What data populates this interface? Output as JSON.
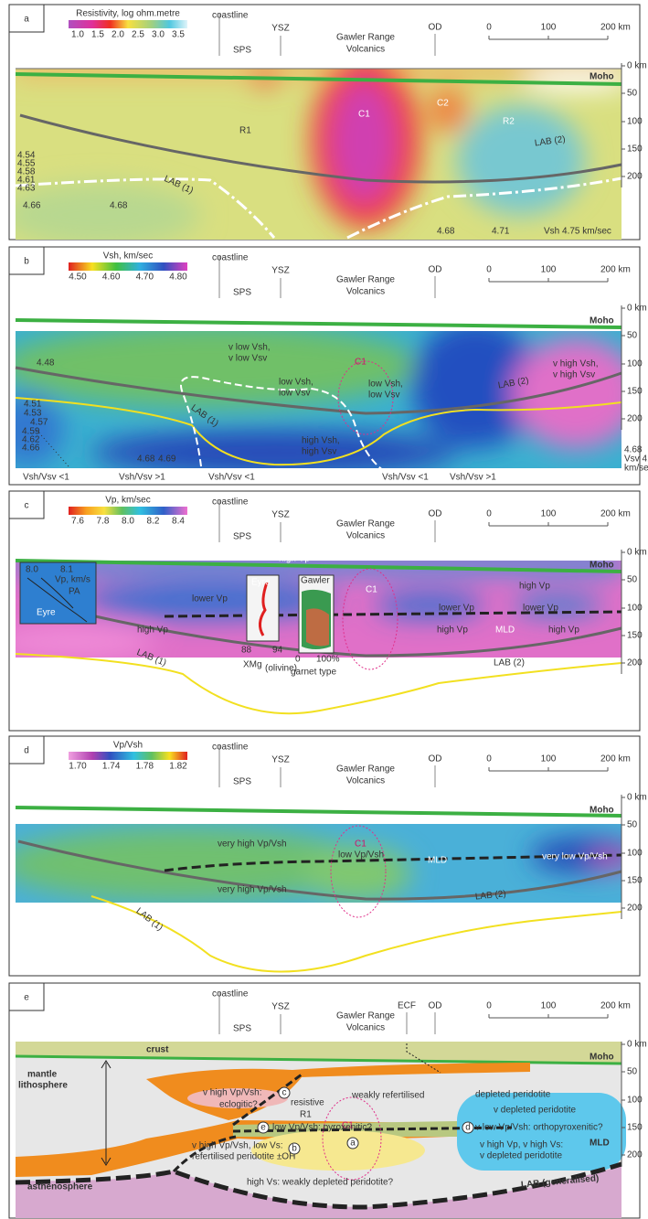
{
  "common": {
    "coastline": "coastline",
    "sps": "SPS",
    "ysz": "YSZ",
    "gawler_1": "Gawler Range",
    "gawler_2": "Volcanics",
    "od": "OD",
    "moho": "Moho",
    "scale": [
      "0",
      "100",
      "200 km"
    ],
    "depth": [
      "0 km",
      "50",
      "100",
      "150",
      "200"
    ]
  },
  "panels": [
    {
      "letter": "a",
      "colorbar_title": "Resistivity, log ohm.metre",
      "colorbar_ticks": [
        "1.0",
        "1.5",
        "2.0",
        "2.5",
        "3.0",
        "3.5"
      ],
      "labels": [
        "R1",
        "C1",
        "C2",
        "R2",
        "LAB (2)",
        "LAB (1)",
        "4.54",
        "4.55",
        "4.58",
        "4.61",
        "4.63",
        "4.66",
        "4.68",
        "4.68",
        "4.71",
        "Vsh 4.75 km/sec"
      ]
    },
    {
      "letter": "b",
      "colorbar_title": "Vsh, km/sec",
      "colorbar_ticks": [
        "4.50",
        "4.60",
        "4.70",
        "4.80"
      ],
      "labels": [
        "v low Vsh,",
        "v low Vsv",
        "4.48",
        "low Vsh,",
        "low Vsv",
        "low Vsh,",
        "low Vsv",
        "C1",
        "v high Vsh,",
        "v high Vsv",
        "LAB (1)",
        "LAB (2)",
        "4.51",
        "4.53",
        "4.57",
        "4.59",
        "4.62",
        "4.66",
        "4.68",
        "4.69",
        "high Vsh,",
        "high Vsv",
        "Vsh/Vsv <1",
        "Vsh/Vsv >1",
        "Vsh/Vsv <1",
        "Vsh/Vsv <1",
        "Vsh/Vsv >1",
        "4.68",
        "Vsv 4.6",
        "km/sec"
      ]
    },
    {
      "letter": "c",
      "colorbar_title": "Vp, km/sec",
      "colorbar_ticks": [
        "7.6",
        "7.8",
        "8.0",
        "8.2",
        "8.4"
      ],
      "labels": [
        "8.0",
        "8.1",
        "Vp, km/s",
        "PA",
        "Eyre",
        "high Vp",
        "Eyre",
        "Gawler",
        "C1",
        "lower Vp",
        "lower Vp",
        "lower Vp",
        "high Vp",
        "high Vp",
        "high Vp",
        "high Vp",
        "MLD",
        "LAB (1)",
        "LAB (2)",
        "88",
        "94",
        "XMg",
        "(olivine)",
        "0",
        "100%",
        "garnet type"
      ]
    },
    {
      "letter": "d",
      "colorbar_title": "Vp/Vsh",
      "colorbar_ticks": [
        "1.70",
        "1.74",
        "1.78",
        "1.82"
      ],
      "labels": [
        "very high Vp/Vsh",
        "C1",
        "low Vp/Vsh",
        "MLD",
        "very low Vp/Vsh",
        "very high Vp/Vsh",
        "LAB (1)",
        "LAB (2)"
      ]
    },
    {
      "letter": "e",
      "extra_header": "ECF",
      "labels": [
        "crust",
        "mantle",
        "lithosphere",
        "v high Vp/Vsh:",
        "eclogitic?",
        "resistive",
        "R1",
        "weakly refertilised",
        "depleted peridotite",
        "C1",
        "low Vp/Vsh: pyroxenitic?",
        "v depleted peridotite",
        "v low Vp/Vsh: orthopyroxenitic?",
        "v high Vp/Vsh, low Vs:",
        "refertilised peridotite ±OH",
        "v high Vp, v high Vs:",
        "v depleted peridotite",
        "MLD",
        "asthenosphere",
        "high Vs: weakly depleted peridotite?",
        "LAB (generalised)",
        "c",
        "e",
        "d",
        "b",
        "a"
      ]
    }
  ]
}
